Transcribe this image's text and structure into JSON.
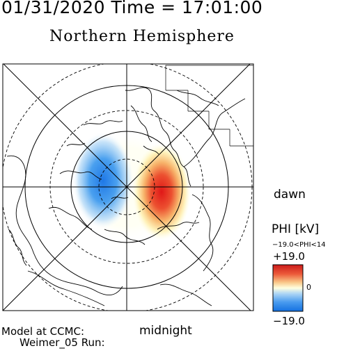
{
  "header": {
    "date_time": "01/31/2020 Time = 17:01:00",
    "hemisphere": "Northern Hemisphere"
  },
  "map": {
    "projection": "north polar stereographic",
    "orientation_labels": {
      "dawn": "dawn",
      "midnight": "midnight"
    },
    "potential_cells": [
      {
        "sign": "negative",
        "side": "dusk",
        "color": "#3b8ee8"
      },
      {
        "sign": "positive",
        "side": "dawn",
        "color": "#e41c1c"
      }
    ],
    "grid": {
      "latitude_circles": "dashed and solid",
      "meridian_lines": true
    }
  },
  "legend": {
    "title": "PHI [kV]",
    "range_text": "−19.0<PHI<14",
    "max_label": "+19.0",
    "zero_label": "0",
    "min_label": "−19.0",
    "colors": {
      "high": "#d11e1e",
      "mid": "#ffffe0",
      "low": "#1b7fe8"
    }
  },
  "footer": {
    "line1": "Model at CCMC:",
    "line2": "Weimer_05 Run:"
  }
}
